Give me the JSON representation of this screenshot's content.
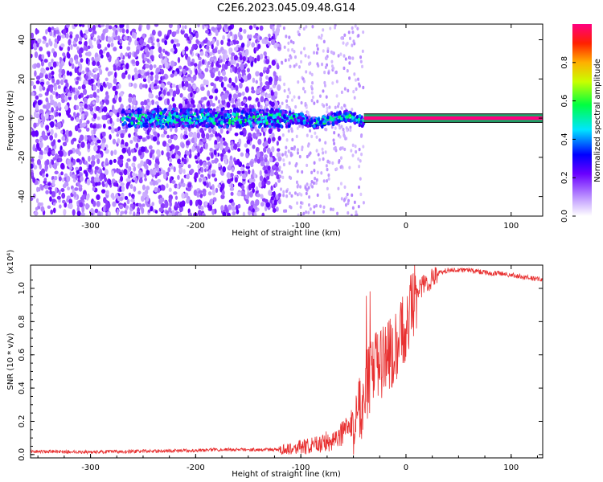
{
  "title": "C2E6.2023.045.09.48.G14",
  "chart_data": [
    {
      "type": "heatmap",
      "xlabel": "Height of straight line (km)",
      "ylabel": "Frequency (Hz)",
      "xlim": [
        -357,
        130
      ],
      "ylim": [
        -50,
        48
      ],
      "x_ticks": [
        "-300",
        "-200",
        "-100",
        "0",
        "100"
      ],
      "y_ticks": [
        "-40",
        "-20",
        "0",
        "20",
        "40"
      ],
      "colorbar": {
        "label": "Normalized spectral amplitude",
        "range": [
          0,
          1
        ],
        "ticks": [
          "0.0",
          "0.2",
          "0.4",
          "0.6",
          "0.8"
        ]
      },
      "features": [
        {
          "kind": "noise",
          "x": [
            -357,
            -120
          ],
          "density": "high"
        },
        {
          "kind": "noise",
          "x": [
            -120,
            -40
          ],
          "density": "low"
        },
        {
          "kind": "signal_ridge",
          "x": [
            -270,
            -40
          ],
          "freq_center": 0,
          "amplitude": [
            0.2,
            0.6
          ]
        },
        {
          "kind": "carrier_line",
          "x": [
            -40,
            130
          ],
          "freq": 0,
          "amplitude": 1.0
        }
      ]
    },
    {
      "type": "line",
      "xlabel": "Height of straight line (km)",
      "ylabel": "SNR (10 * v/v)",
      "y_scale_label": "(x10⁴)",
      "xlim": [
        -357,
        130
      ],
      "ylim": [
        -0.02,
        1.14
      ],
      "x_ticks": [
        "-300",
        "-200",
        "-100",
        "0",
        "100"
      ],
      "y_ticks": [
        "0.0",
        "0.2",
        "0.4",
        "0.6",
        "0.8",
        "1.0"
      ],
      "series": [
        {
          "color": "#e83030",
          "x": [
            -357,
            -300,
            -250,
            -200,
            -180,
            -150,
            -120,
            -100,
            -90,
            -80,
            -70,
            -60,
            -50,
            -45,
            -40,
            -35,
            -30,
            -25,
            -20,
            -15,
            -10,
            -5,
            0,
            5,
            10,
            20,
            30,
            40,
            50,
            60,
            70,
            80,
            90,
            100,
            110,
            120,
            130
          ],
          "y": [
            0.02,
            0.015,
            0.02,
            0.025,
            0.03,
            0.03,
            0.03,
            0.045,
            0.05,
            0.07,
            0.09,
            0.13,
            0.2,
            0.27,
            0.35,
            0.45,
            0.5,
            0.55,
            0.58,
            0.6,
            0.62,
            0.7,
            0.8,
            0.9,
            0.97,
            1.04,
            1.09,
            1.11,
            1.11,
            1.11,
            1.1,
            1.09,
            1.09,
            1.08,
            1.07,
            1.06,
            1.05
          ]
        }
      ]
    }
  ]
}
